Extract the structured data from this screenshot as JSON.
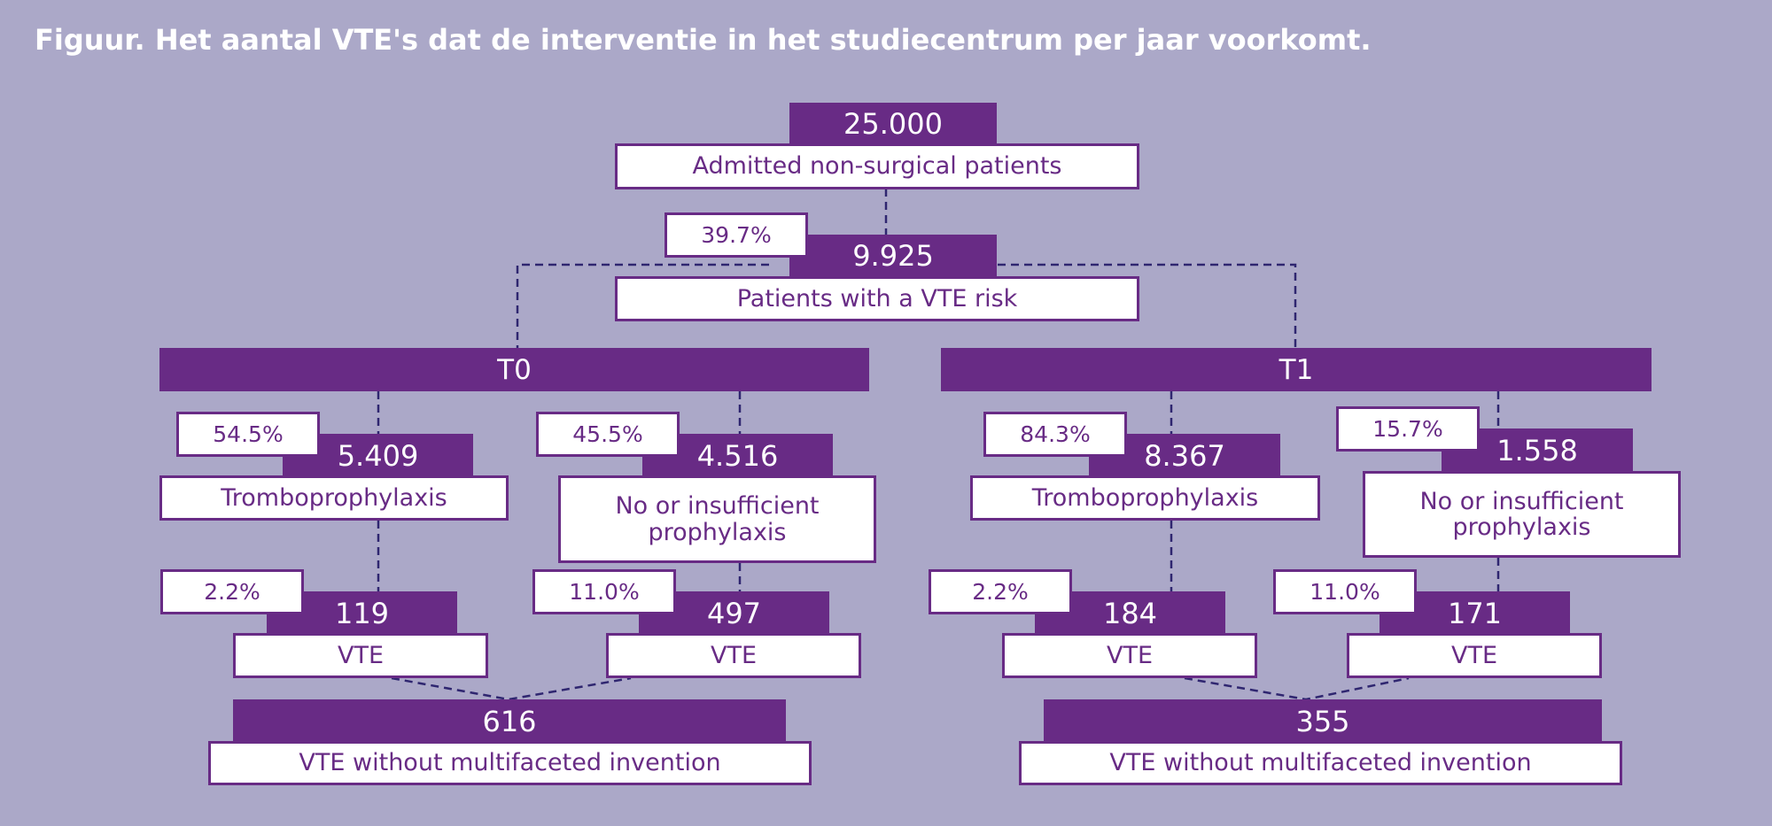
{
  "title": "Figuur. Het aantal VTE's dat de interventie in het studiecentrum per jaar voorkomt.",
  "colors": {
    "background": "#aba8c8",
    "accent": "#682b85",
    "box": "#ffffff",
    "connector": "#2f2670"
  },
  "top": {
    "admitted": {
      "value": "25.000",
      "label": "Admitted non-surgical patients"
    },
    "risk": {
      "value": "9.925",
      "label": "Patients with a VTE risk",
      "pct": "39.7%"
    }
  },
  "groups": {
    "t0": {
      "label": "T0",
      "proph": {
        "pct": "54.5%",
        "value": "5.409",
        "label": "Tromboprophylaxis"
      },
      "noproph": {
        "pct": "45.5%",
        "value": "4.516",
        "label": "No or insufficient prophylaxis"
      },
      "vte_proph": {
        "pct": "2.2%",
        "value": "119",
        "label": "VTE"
      },
      "vte_noproph": {
        "pct": "11.0%",
        "value": "497",
        "label": "VTE"
      },
      "total": {
        "value": "616",
        "label": "VTE without multifaceted invention"
      }
    },
    "t1": {
      "label": "T1",
      "proph": {
        "pct": "84.3%",
        "value": "8.367",
        "label": "Tromboprophylaxis"
      },
      "noproph": {
        "pct": "15.7%",
        "value": "1.558",
        "label": "No or insufficient prophylaxis"
      },
      "vte_proph": {
        "pct": "2.2%",
        "value": "184",
        "label": "VTE"
      },
      "vte_noproph": {
        "pct": "11.0%",
        "value": "171",
        "label": "VTE"
      },
      "total": {
        "value": "355",
        "label": "VTE without multifaceted invention"
      }
    }
  }
}
